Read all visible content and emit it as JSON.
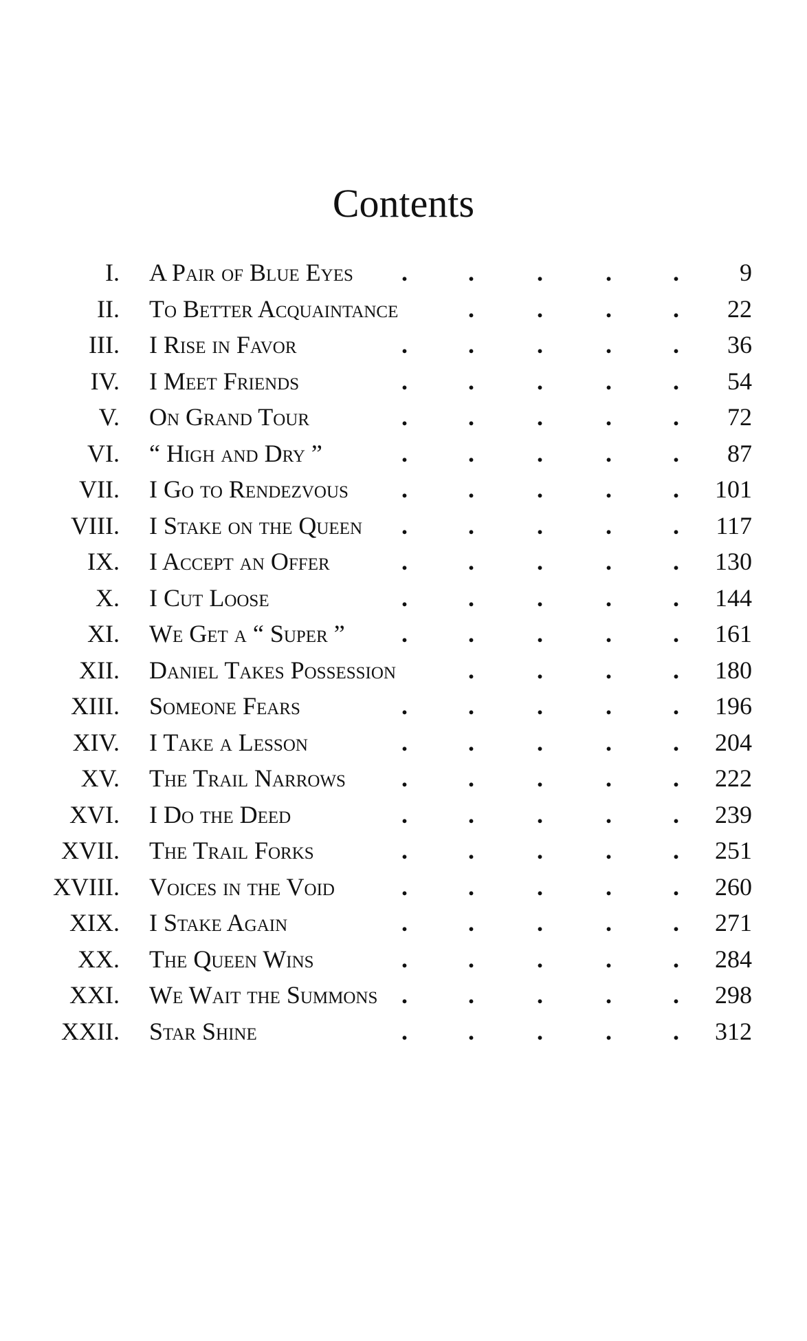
{
  "title": "Contents",
  "entries": [
    {
      "numeral": "I.",
      "title": "A Pair of Blue Eyes",
      "page": "9"
    },
    {
      "numeral": "II.",
      "title": "To Better Acquaintance",
      "page": "22"
    },
    {
      "numeral": "III.",
      "title": "I Rise in Favor",
      "page": "36"
    },
    {
      "numeral": "IV.",
      "title": "I Meet Friends",
      "page": "54"
    },
    {
      "numeral": "V.",
      "title": "On Grand Tour",
      "page": "72"
    },
    {
      "numeral": "VI.",
      "title": "“ High and Dry ”",
      "page": "87"
    },
    {
      "numeral": "VII.",
      "title": "I Go to Rendezvous",
      "page": "101"
    },
    {
      "numeral": "VIII.",
      "title": "I Stake on the Queen",
      "page": "117"
    },
    {
      "numeral": "IX.",
      "title": "I Accept an Offer",
      "page": "130"
    },
    {
      "numeral": "X.",
      "title": "I Cut Loose",
      "page": "144"
    },
    {
      "numeral": "XI.",
      "title": "We Get a “ Super ”",
      "page": "161"
    },
    {
      "numeral": "XII.",
      "title": "Daniel Takes Possession",
      "page": "180"
    },
    {
      "numeral": "XIII.",
      "title": "Someone Fears",
      "page": "196"
    },
    {
      "numeral": "XIV.",
      "title": "I Take a Lesson",
      "page": "204"
    },
    {
      "numeral": "XV.",
      "title": "The Trail Narrows",
      "page": "222"
    },
    {
      "numeral": "XVI.",
      "title": "I Do the Deed",
      "page": "239"
    },
    {
      "numeral": "XVII.",
      "title": "The Trail Forks",
      "page": "251"
    },
    {
      "numeral": "XVIII.",
      "title": "Voices in the Void",
      "page": "260"
    },
    {
      "numeral": "XIX.",
      "title": "I Stake Again",
      "page": "271"
    },
    {
      "numeral": "XX.",
      "title": "The Queen Wins",
      "page": "284"
    },
    {
      "numeral": "XXI.",
      "title": "We Wait the Summons",
      "page": "298"
    },
    {
      "numeral": "XXII.",
      "title": "Star Shine",
      "page": "312"
    }
  ]
}
